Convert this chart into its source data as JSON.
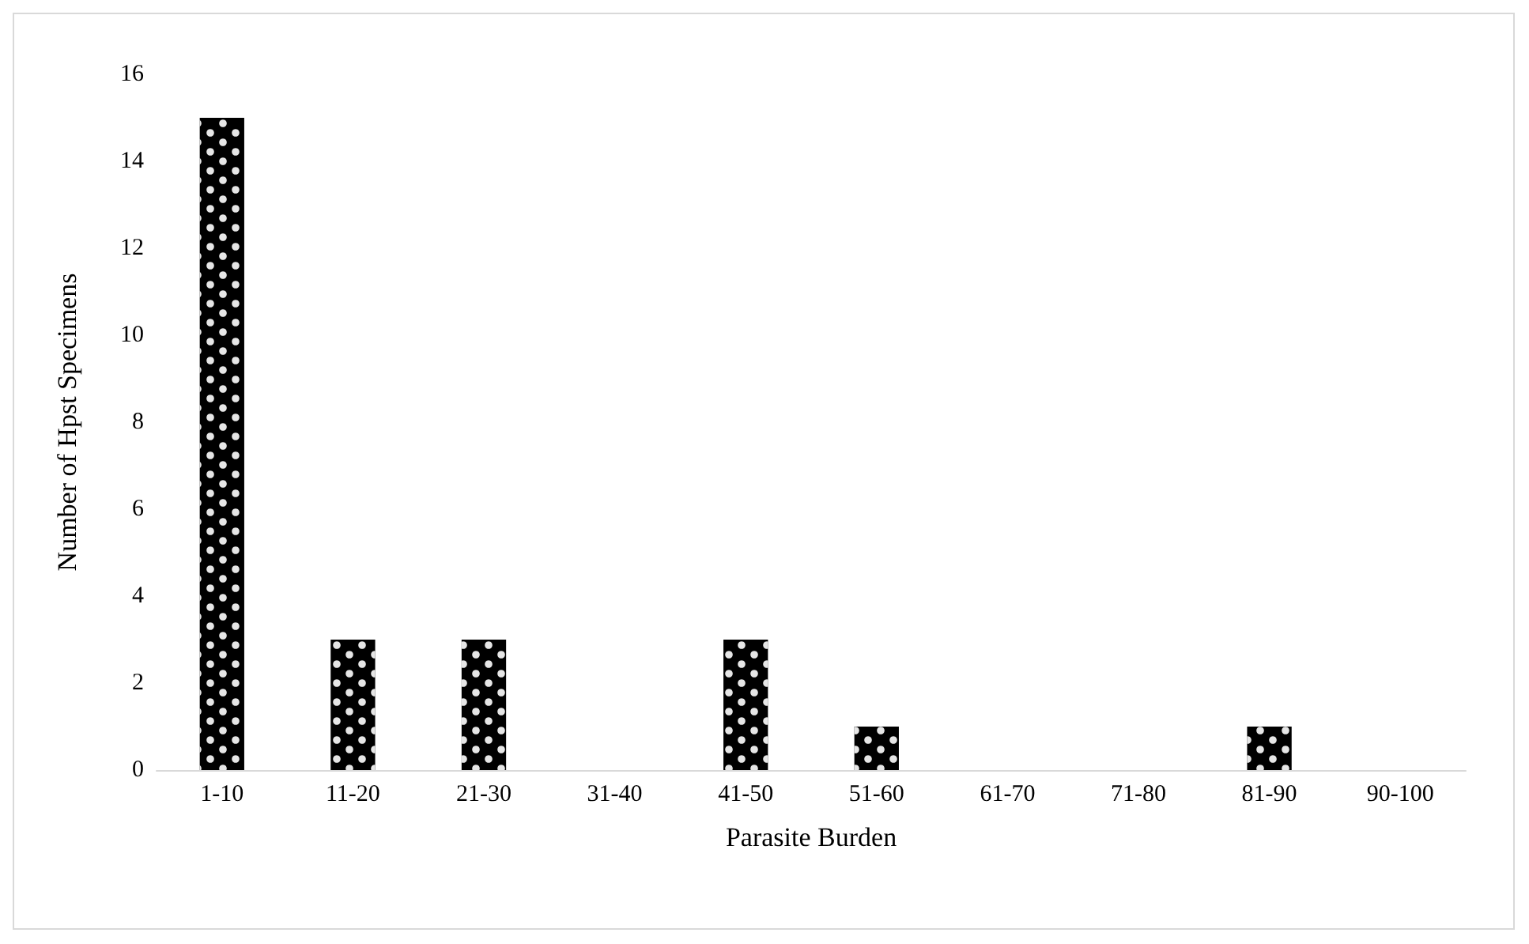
{
  "chart_data": {
    "type": "bar",
    "xlabel": "Parasite Burden",
    "ylabel": "Number of Hpst Specimens",
    "categories": [
      "1-10",
      "11-20",
      "21-30",
      "31-40",
      "41-50",
      "51-60",
      "61-70",
      "71-80",
      "81-90",
      "90-100"
    ],
    "values": [
      15,
      3,
      3,
      0,
      3,
      1,
      0,
      0,
      1,
      0
    ],
    "color": "#000000",
    "ylim": [
      0,
      16
    ],
    "yticks": [
      0,
      2,
      4,
      6,
      8,
      10,
      12,
      14,
      16
    ],
    "grid": false
  }
}
